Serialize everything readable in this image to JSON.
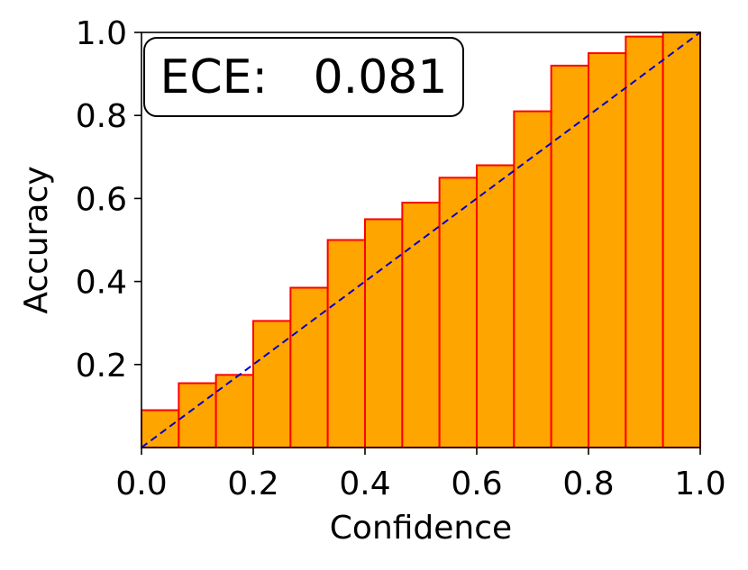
{
  "chart_data": {
    "type": "bar",
    "xlabel": "Confidence",
    "ylabel": "Accuracy",
    "xlim": [
      0,
      1
    ],
    "ylim": [
      0,
      1
    ],
    "grid": false,
    "x_ticks": [
      "0.0",
      "0.2",
      "0.4",
      "0.6",
      "0.8",
      "1.0"
    ],
    "y_ticks": [
      "0.2",
      "0.4",
      "0.6",
      "0.8",
      "1.0"
    ],
    "bins": [
      {
        "x0": 0.0,
        "x1": 0.0667,
        "value": 0.09
      },
      {
        "x0": 0.0667,
        "x1": 0.1333,
        "value": 0.155
      },
      {
        "x0": 0.1333,
        "x1": 0.2,
        "value": 0.175
      },
      {
        "x0": 0.2,
        "x1": 0.2667,
        "value": 0.305
      },
      {
        "x0": 0.2667,
        "x1": 0.3333,
        "value": 0.385
      },
      {
        "x0": 0.3333,
        "x1": 0.4,
        "value": 0.5
      },
      {
        "x0": 0.4,
        "x1": 0.4667,
        "value": 0.55
      },
      {
        "x0": 0.4667,
        "x1": 0.5333,
        "value": 0.59
      },
      {
        "x0": 0.5333,
        "x1": 0.6,
        "value": 0.65
      },
      {
        "x0": 0.6,
        "x1": 0.6667,
        "value": 0.68
      },
      {
        "x0": 0.6667,
        "x1": 0.7333,
        "value": 0.81
      },
      {
        "x0": 0.7333,
        "x1": 0.8,
        "value": 0.92
      },
      {
        "x0": 0.8,
        "x1": 0.8667,
        "value": 0.95
      },
      {
        "x0": 0.8667,
        "x1": 0.9333,
        "value": 0.99
      },
      {
        "x0": 0.9333,
        "x1": 1.0,
        "value": 1.0
      }
    ],
    "reference_line": {
      "x": [
        0,
        1
      ],
      "y": [
        0,
        1
      ],
      "style": "dashed"
    },
    "annotation": {
      "label": "ECE:",
      "value": "0.081",
      "placement": "top-left"
    },
    "colors": {
      "bar_fill": "#FFA500",
      "bar_edge": "#FF0000",
      "reference_line": "#0000CC",
      "axes": "#000000",
      "box_border": "#000000",
      "box_fill": "#FFFFFF"
    }
  }
}
